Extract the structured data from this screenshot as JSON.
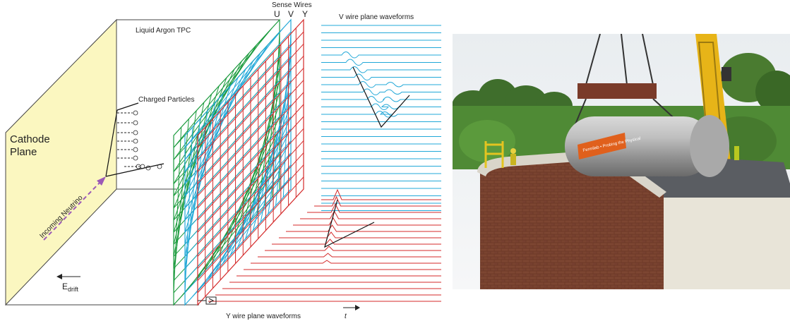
{
  "labels": {
    "cathode_line1": "Cathode",
    "cathode_line2": "Plane",
    "tpc": "Liquid Argon TPC",
    "charged_particles": "Charged Particles",
    "incoming_neutrino": "Incoming Neutrino",
    "edrift_main": "E",
    "edrift_sub": "drift",
    "sense_wires": "Sense Wires",
    "wire_u": "U",
    "wire_v": "V",
    "wire_y": "Y",
    "v_waveforms": "V wire plane waveforms",
    "y_waveforms": "Y wire plane waveforms",
    "time": "t"
  },
  "photo": {
    "banner_text": "Fermilab • Probing the Physical"
  },
  "colors": {
    "cathode_fill": "#fbf7c0",
    "u_plane": "#1a9a3c",
    "v_plane": "#22a8d8",
    "y_plane": "#d42a2a",
    "neutrino": "#9b59b6",
    "v_wave": "#22a8d8",
    "y_wave": "#d42a2a"
  }
}
